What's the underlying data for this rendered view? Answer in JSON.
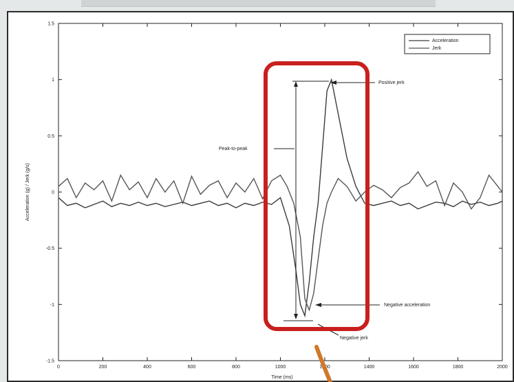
{
  "chart_data": {
    "type": "line",
    "xlabel": "Time (ms)",
    "ylabel": "Acceleration (g) / Jerk (g/s)",
    "xlim": [
      0,
      2000
    ],
    "ylim": [
      -1.5,
      1.5
    ],
    "x_ticks": [
      "0",
      "200",
      "400",
      "600",
      "800",
      "1000",
      "1200",
      "1400",
      "1600",
      "1800",
      "2000"
    ],
    "y_ticks": [
      "1.5",
      "1",
      "0.5",
      "0",
      "-0.5",
      "-1",
      "-1.5"
    ],
    "legend": {
      "position": "top-right",
      "entries": [
        "Acceleration",
        "Jerk"
      ]
    },
    "series": [
      {
        "name": "Acceleration",
        "x": [
          0,
          40,
          80,
          120,
          160,
          200,
          240,
          280,
          320,
          360,
          400,
          440,
          480,
          520,
          560,
          600,
          640,
          680,
          720,
          760,
          800,
          840,
          880,
          920,
          960,
          1000,
          1040,
          1070,
          1090,
          1110,
          1130,
          1150,
          1170,
          1190,
          1210,
          1230,
          1260,
          1300,
          1340,
          1380,
          1420,
          1460,
          1500,
          1540,
          1580,
          1620,
          1660,
          1700,
          1740,
          1780,
          1820,
          1860,
          1900,
          1940,
          1980,
          2000
        ],
        "y": [
          -0.05,
          -0.12,
          -0.1,
          -0.14,
          -0.11,
          -0.08,
          -0.13,
          -0.1,
          -0.12,
          -0.09,
          -0.12,
          -0.1,
          -0.13,
          -0.11,
          -0.09,
          -0.12,
          -0.1,
          -0.08,
          -0.12,
          -0.1,
          -0.14,
          -0.1,
          -0.12,
          -0.09,
          -0.11,
          -0.05,
          -0.3,
          -0.7,
          -1.0,
          -1.1,
          -0.8,
          -0.4,
          -0.1,
          0.4,
          0.9,
          1.0,
          0.7,
          0.3,
          0.05,
          -0.1,
          -0.12,
          -0.1,
          -0.08,
          -0.12,
          -0.1,
          -0.15,
          -0.12,
          -0.09,
          -0.1,
          -0.13,
          -0.08,
          -0.11,
          -0.09,
          -0.12,
          -0.1,
          -0.08
        ]
      },
      {
        "name": "Jerk",
        "x": [
          0,
          40,
          80,
          120,
          160,
          200,
          240,
          280,
          320,
          360,
          400,
          440,
          480,
          520,
          560,
          600,
          640,
          680,
          720,
          760,
          800,
          840,
          880,
          920,
          960,
          1000,
          1030,
          1060,
          1090,
          1110,
          1130,
          1150,
          1170,
          1190,
          1210,
          1230,
          1260,
          1300,
          1340,
          1380,
          1420,
          1460,
          1500,
          1540,
          1580,
          1620,
          1660,
          1700,
          1740,
          1780,
          1820,
          1860,
          1900,
          1940,
          1980,
          2000
        ],
        "y": [
          0.05,
          0.12,
          -0.05,
          0.08,
          0.02,
          0.1,
          -0.08,
          0.15,
          0.02,
          0.09,
          -0.05,
          0.12,
          0.0,
          0.1,
          -0.1,
          0.14,
          -0.02,
          0.06,
          0.1,
          -0.05,
          0.08,
          0.0,
          0.12,
          -0.06,
          0.1,
          0.15,
          0.05,
          -0.1,
          -0.4,
          -0.95,
          -1.05,
          -0.9,
          -0.6,
          -0.3,
          -0.1,
          0.0,
          0.12,
          0.05,
          -0.08,
          0.0,
          0.06,
          0.02,
          -0.05,
          0.04,
          0.08,
          0.18,
          0.05,
          0.1,
          -0.12,
          0.08,
          0.0,
          -0.15,
          -0.05,
          0.15,
          0.05,
          0.0
        ]
      }
    ],
    "annotations": [
      "Positive jerk",
      "Peak-to-peak",
      "Negative acceleration",
      "Negative jerk"
    ],
    "highlight_color": "#c8201e",
    "arrow_color": "#d0782a"
  }
}
